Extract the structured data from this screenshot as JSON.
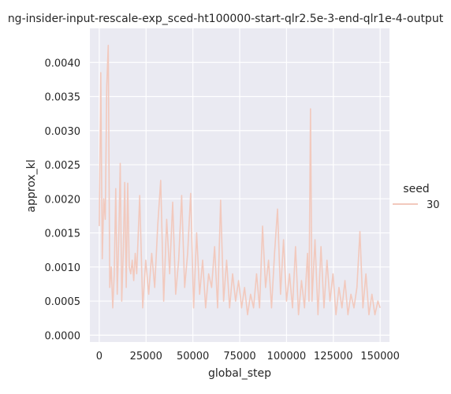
{
  "chart_data": {
    "type": "line",
    "title": "ng-insider-input-rescale-exp_sced-ht100000-start-qlr2.5e-3-end-qlr1e-4-output",
    "xlabel": "global_step",
    "ylabel": "approx_kl",
    "xlim": [
      -5000,
      155000
    ],
    "ylim": [
      -0.0001,
      0.0045
    ],
    "x_ticks": [
      0,
      25000,
      50000,
      75000,
      100000,
      125000,
      150000
    ],
    "y_ticks": [
      0.0,
      0.0005,
      0.001,
      0.0015,
      0.002,
      0.0025,
      0.003,
      0.0035,
      0.004
    ],
    "x_tick_labels": [
      "0",
      "25000",
      "50000",
      "75000",
      "100000",
      "125000",
      "150000"
    ],
    "y_tick_labels": [
      "0.0000",
      "0.0005",
      "0.0010",
      "0.0015",
      "0.0020",
      "0.0025",
      "0.0030",
      "0.0035",
      "0.0040"
    ],
    "grid": true,
    "background_color": "#eaeaf2",
    "grid_color": "#ffffff",
    "legend": {
      "title": "seed",
      "placement": "right",
      "entries": [
        "30"
      ]
    },
    "series": [
      {
        "name": "30",
        "color": "#f2c9bd",
        "x": [
          0,
          800,
          1600,
          2400,
          3200,
          4000,
          4800,
          5600,
          6400,
          7200,
          8000,
          8800,
          9600,
          10400,
          11200,
          12000,
          12800,
          13600,
          14400,
          15200,
          16000,
          16800,
          17600,
          18400,
          19200,
          20000,
          21600,
          23200,
          24800,
          26400,
          28000,
          29600,
          31200,
          32800,
          34400,
          36000,
          37600,
          39200,
          40800,
          42400,
          44000,
          45600,
          47200,
          48800,
          50400,
          52000,
          53600,
          55200,
          56800,
          58400,
          60000,
          61600,
          63200,
          64800,
          66400,
          68000,
          69600,
          71200,
          72800,
          74400,
          76000,
          77600,
          79200,
          80800,
          82400,
          84000,
          85600,
          87200,
          88800,
          90400,
          92000,
          93600,
          95200,
          96800,
          98400,
          100000,
          101600,
          103200,
          104800,
          106400,
          108000,
          109600,
          111200,
          112000,
          112800,
          113600,
          115200,
          116800,
          118400,
          120000,
          121600,
          123200,
          124800,
          126400,
          128000,
          129600,
          131200,
          132800,
          134400,
          136000,
          137600,
          139200,
          140800,
          142400,
          144000,
          145600,
          147200,
          148800,
          150000
        ],
        "values": [
          0.0016,
          0.00385,
          0.00112,
          0.002,
          0.0017,
          0.00365,
          0.00425,
          0.0007,
          0.001,
          0.0004,
          0.0009,
          0.00215,
          0.0006,
          0.0014,
          0.00252,
          0.0005,
          0.0012,
          0.00224,
          0.0007,
          0.00223,
          0.001,
          0.0009,
          0.0011,
          0.0008,
          0.0012,
          0.0009,
          0.00205,
          0.0004,
          0.0011,
          0.0006,
          0.0012,
          0.0007,
          0.0016,
          0.00227,
          0.0005,
          0.0017,
          0.0009,
          0.00195,
          0.0006,
          0.0011,
          0.00205,
          0.0007,
          0.0012,
          0.00208,
          0.0004,
          0.0015,
          0.0006,
          0.0011,
          0.0004,
          0.0009,
          0.0007,
          0.0013,
          0.0004,
          0.00198,
          0.0005,
          0.0011,
          0.0004,
          0.0009,
          0.0005,
          0.0008,
          0.0004,
          0.0007,
          0.0003,
          0.0006,
          0.0004,
          0.0009,
          0.0004,
          0.0016,
          0.0007,
          0.0011,
          0.0004,
          0.0012,
          0.00185,
          0.0006,
          0.0014,
          0.0005,
          0.0009,
          0.0004,
          0.0013,
          0.0003,
          0.0008,
          0.0004,
          0.0012,
          0.0005,
          0.00332,
          0.0005,
          0.0014,
          0.0003,
          0.0013,
          0.0004,
          0.0011,
          0.0005,
          0.0009,
          0.0003,
          0.0007,
          0.0004,
          0.0008,
          0.0003,
          0.0006,
          0.0004,
          0.0007,
          0.00152,
          0.0004,
          0.0009,
          0.0003,
          0.0006,
          0.0003,
          0.0005,
          0.0004
        ]
      }
    ]
  }
}
